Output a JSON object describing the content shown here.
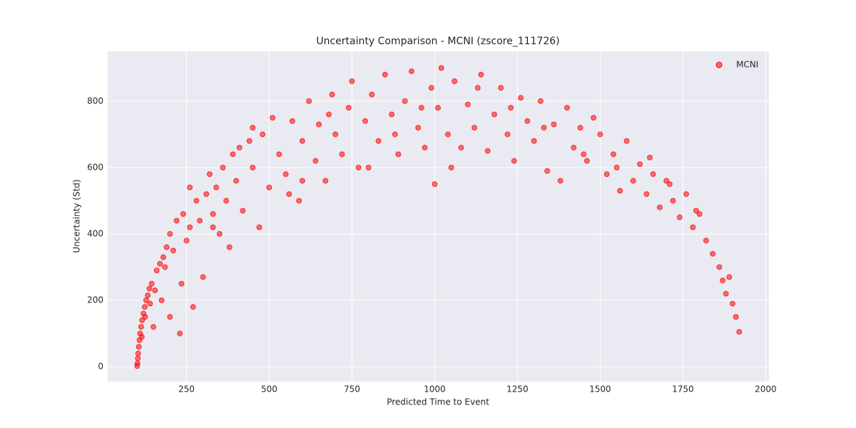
{
  "chart_data": {
    "type": "scatter",
    "title": "Uncertainty Comparison - MCNI (zscore_111726)",
    "x_label": "Predicted Time to Event",
    "y_label": "Uncertainty (Std)",
    "xlim": [
      12,
      2010
    ],
    "ylim": [
      -45,
      950
    ],
    "xticks": [
      250,
      500,
      750,
      1000,
      1250,
      1500,
      1750,
      2000
    ],
    "yticks": [
      0,
      200,
      400,
      600,
      800
    ],
    "grid": true,
    "legend": "upper right",
    "x": [
      101,
      102,
      103,
      104,
      106,
      108,
      110,
      113,
      116,
      120,
      124,
      128,
      133,
      138,
      145,
      150,
      160,
      170,
      175,
      180,
      190,
      200,
      200,
      210,
      220,
      230,
      235,
      240,
      250,
      260,
      270,
      280,
      290,
      300,
      310,
      320,
      330,
      340,
      350,
      360,
      370,
      380,
      390,
      400,
      420,
      440,
      450,
      450,
      470,
      480,
      500,
      510,
      530,
      550,
      570,
      590,
      600,
      600,
      620,
      640,
      650,
      670,
      690,
      700,
      720,
      740,
      750,
      770,
      790,
      800,
      810,
      830,
      850,
      870,
      890,
      910,
      930,
      950,
      970,
      990,
      1000,
      1010,
      1020,
      1040,
      1050,
      1060,
      1080,
      1100,
      1120,
      1140,
      1160,
      1180,
      1200,
      1220,
      1240,
      1260,
      1280,
      1300,
      1320,
      1340,
      1360,
      1380,
      1400,
      1420,
      1440,
      1460,
      1480,
      1500,
      1520,
      1540,
      1560,
      1580,
      1600,
      1620,
      1640,
      1660,
      1680,
      1700,
      1720,
      1740,
      1760,
      1780,
      1800,
      1820,
      1840,
      1860,
      1870,
      1880,
      1890,
      1900,
      1910,
      1920,
      115,
      125,
      140,
      155,
      185,
      260,
      330,
      410,
      560,
      680,
      880,
      960,
      1130,
      1230,
      1330,
      1450,
      1550,
      1650,
      1710,
      1790
    ],
    "series": [
      {
        "name": "MCNI",
        "color": "#ff0000",
        "values": [
          2,
          10,
          25,
          40,
          60,
          80,
          100,
          120,
          140,
          160,
          180,
          200,
          215,
          235,
          250,
          120,
          290,
          310,
          200,
          330,
          360,
          150,
          400,
          350,
          440,
          100,
          250,
          460,
          380,
          420,
          180,
          500,
          440,
          270,
          520,
          580,
          460,
          540,
          400,
          600,
          500,
          360,
          640,
          560,
          470,
          680,
          600,
          720,
          420,
          700,
          540,
          750,
          640,
          580,
          740,
          500,
          680,
          560,
          800,
          620,
          730,
          560,
          820,
          700,
          640,
          780,
          860,
          600,
          740,
          600,
          820,
          680,
          880,
          760,
          640,
          800,
          890,
          720,
          660,
          840,
          550,
          780,
          900,
          700,
          600,
          860,
          660,
          790,
          720,
          880,
          650,
          760,
          840,
          700,
          620,
          810,
          740,
          680,
          800,
          590,
          730,
          560,
          780,
          660,
          720,
          620,
          750,
          700,
          580,
          640,
          530,
          680,
          560,
          610,
          520,
          580,
          480,
          560,
          500,
          450,
          520,
          420,
          460,
          380,
          340,
          300,
          260,
          220,
          270,
          190,
          150,
          105,
          90,
          150,
          190,
          230,
          300,
          540,
          420,
          660,
          520,
          760,
          700,
          780,
          840,
          780,
          720,
          640,
          600,
          630,
          550,
          470
        ]
      }
    ]
  }
}
